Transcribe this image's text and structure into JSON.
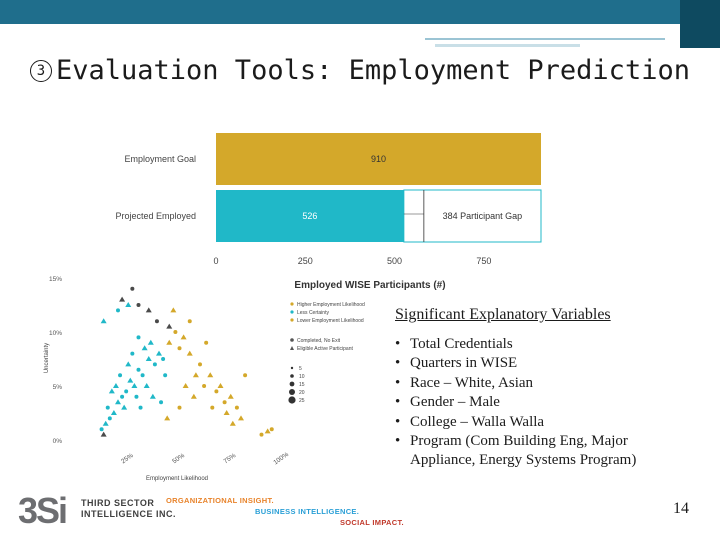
{
  "slide": {
    "title_number": "3",
    "title_text": "Evaluation Tools: Employment Prediction",
    "page_number": "14"
  },
  "variables": {
    "heading": "Significant Explanatory Variables",
    "items": [
      "Total Credentials",
      "Quarters in WISE",
      "Race – White, Asian",
      "Gender – Male",
      "College – Walla Walla",
      "Program (Com Building Eng, Major Appliance, Energy Systems Program)"
    ]
  },
  "logo": {
    "mark": "3Si",
    "org_line1": "THIRD SECTOR",
    "org_line2": "INTELLIGENCE INC.",
    "tagline1": "ORGANIZATIONAL INSIGHT.",
    "tagline2": "BUSINESS INTELLIGENCE.",
    "tagline3": "SOCIAL IMPACT."
  },
  "colors": {
    "gold": "#d4a82a",
    "teal": "#20b8c8",
    "topbar": "#1f6e8c"
  },
  "chart_data": [
    {
      "type": "bar",
      "orientation": "horizontal",
      "categories": [
        "Employment Goal",
        "Projected Employed"
      ],
      "series": [
        {
          "values": [
            910,
            526
          ]
        }
      ],
      "gap_label": "384 Participant Gap",
      "gap_value": 384,
      "goal_value": 910,
      "xlabel": "Employed WISE Participants (#)",
      "xticks": [
        "0",
        "250",
        "500",
        "750"
      ],
      "xlim": [
        0,
        910
      ]
    },
    {
      "type": "scatter",
      "xlabel": "Employment Likelihood",
      "ylabel": "Uncertainty",
      "xticks": [
        "25%",
        "50%",
        "75%",
        "100%"
      ],
      "yticks": [
        "0%",
        "5%",
        "10%",
        "15%"
      ],
      "legend": {
        "group1": [
          "Higher Employment Likelihood",
          "Less Certainty",
          "Lower Employment Likelihood"
        ],
        "group2": [
          "Completed, No Exit",
          "Eligible Active Participant"
        ],
        "group3": [
          "5",
          "10",
          "15",
          "20",
          "25"
        ]
      },
      "series": [
        {
          "color_key": "teal",
          "points": [
            [
              0.14,
              0.015
            ],
            [
              0.16,
              0.02
            ],
            [
              0.18,
              0.025
            ],
            [
              0.15,
              0.03
            ],
            [
              0.2,
              0.035
            ],
            [
              0.22,
              0.04
            ],
            [
              0.19,
              0.05
            ],
            [
              0.24,
              0.045
            ],
            [
              0.26,
              0.055
            ],
            [
              0.21,
              0.06
            ],
            [
              0.28,
              0.05
            ],
            [
              0.3,
              0.065
            ],
            [
              0.25,
              0.07
            ],
            [
              0.32,
              0.06
            ],
            [
              0.35,
              0.075
            ],
            [
              0.27,
              0.08
            ],
            [
              0.33,
              0.085
            ],
            [
              0.38,
              0.07
            ],
            [
              0.4,
              0.08
            ],
            [
              0.3,
              0.095
            ],
            [
              0.36,
              0.09
            ],
            [
              0.42,
              0.075
            ],
            [
              0.23,
              0.03
            ],
            [
              0.29,
              0.04
            ],
            [
              0.34,
              0.05
            ],
            [
              0.31,
              0.03
            ],
            [
              0.37,
              0.04
            ],
            [
              0.12,
              0.01
            ],
            [
              0.17,
              0.045
            ],
            [
              0.43,
              0.06
            ],
            [
              0.13,
              0.11
            ],
            [
              0.2,
              0.12
            ],
            [
              0.25,
              0.125
            ],
            [
              0.41,
              0.035
            ]
          ]
        },
        {
          "color_key": "gold",
          "points": [
            [
              0.45,
              0.09
            ],
            [
              0.5,
              0.085
            ],
            [
              0.55,
              0.08
            ],
            [
              0.48,
              0.1
            ],
            [
              0.52,
              0.095
            ],
            [
              0.6,
              0.07
            ],
            [
              0.58,
              0.06
            ],
            [
              0.62,
              0.05
            ],
            [
              0.65,
              0.06
            ],
            [
              0.68,
              0.045
            ],
            [
              0.7,
              0.05
            ],
            [
              0.72,
              0.035
            ],
            [
              0.75,
              0.04
            ],
            [
              0.78,
              0.03
            ],
            [
              0.8,
              0.02
            ],
            [
              0.55,
              0.11
            ],
            [
              0.47,
              0.12
            ],
            [
              0.63,
              0.09
            ],
            [
              0.57,
              0.04
            ],
            [
              0.66,
              0.03
            ],
            [
              0.73,
              0.025
            ],
            [
              0.82,
              0.06
            ],
            [
              0.76,
              0.015
            ],
            [
              0.9,
              0.005
            ],
            [
              0.93,
              0.008
            ],
            [
              0.95,
              0.01
            ],
            [
              0.44,
              0.02
            ],
            [
              0.5,
              0.03
            ],
            [
              0.53,
              0.05
            ]
          ]
        },
        {
          "color_key": "dark",
          "points": [
            [
              0.22,
              0.13
            ],
            [
              0.3,
              0.125
            ],
            [
              0.35,
              0.12
            ],
            [
              0.27,
              0.14
            ],
            [
              0.13,
              0.005
            ],
            [
              0.39,
              0.11
            ],
            [
              0.45,
              0.105
            ]
          ]
        }
      ]
    }
  ]
}
